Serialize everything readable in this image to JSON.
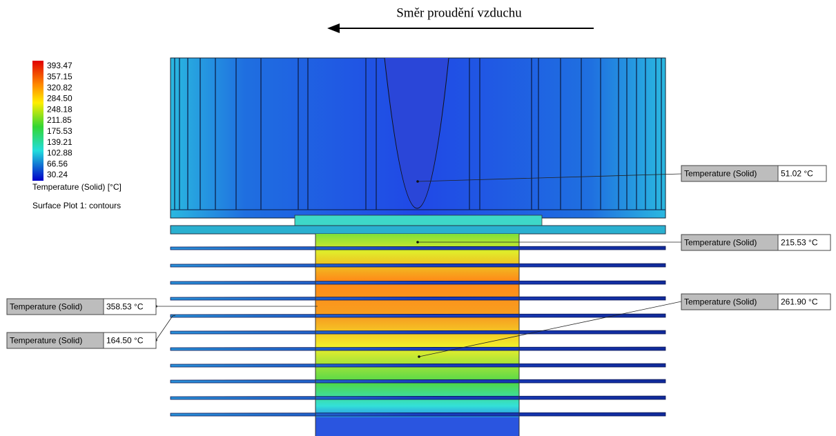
{
  "header": {
    "title": "Směr proudění vzduchu"
  },
  "legend": {
    "values": [
      "393.47",
      "357.15",
      "320.82",
      "284.50",
      "248.18",
      "211.85",
      "175.53",
      "139.21",
      "102.88",
      "66.56",
      "30.24"
    ],
    "title": "Temperature (Solid) [°C]",
    "subtitle": "Surface Plot 1: contours"
  },
  "probes": [
    {
      "label": "Temperature (Solid)",
      "value": "51.02 °C"
    },
    {
      "label": "Temperature (Solid)",
      "value": "215.53 °C"
    },
    {
      "label": "Temperature (Solid)",
      "value": "261.90 °C"
    },
    {
      "label": "Temperature (Solid)",
      "value": "358.53 °C"
    },
    {
      "label": "Temperature (Solid)",
      "value": "164.50 °C"
    }
  ]
}
